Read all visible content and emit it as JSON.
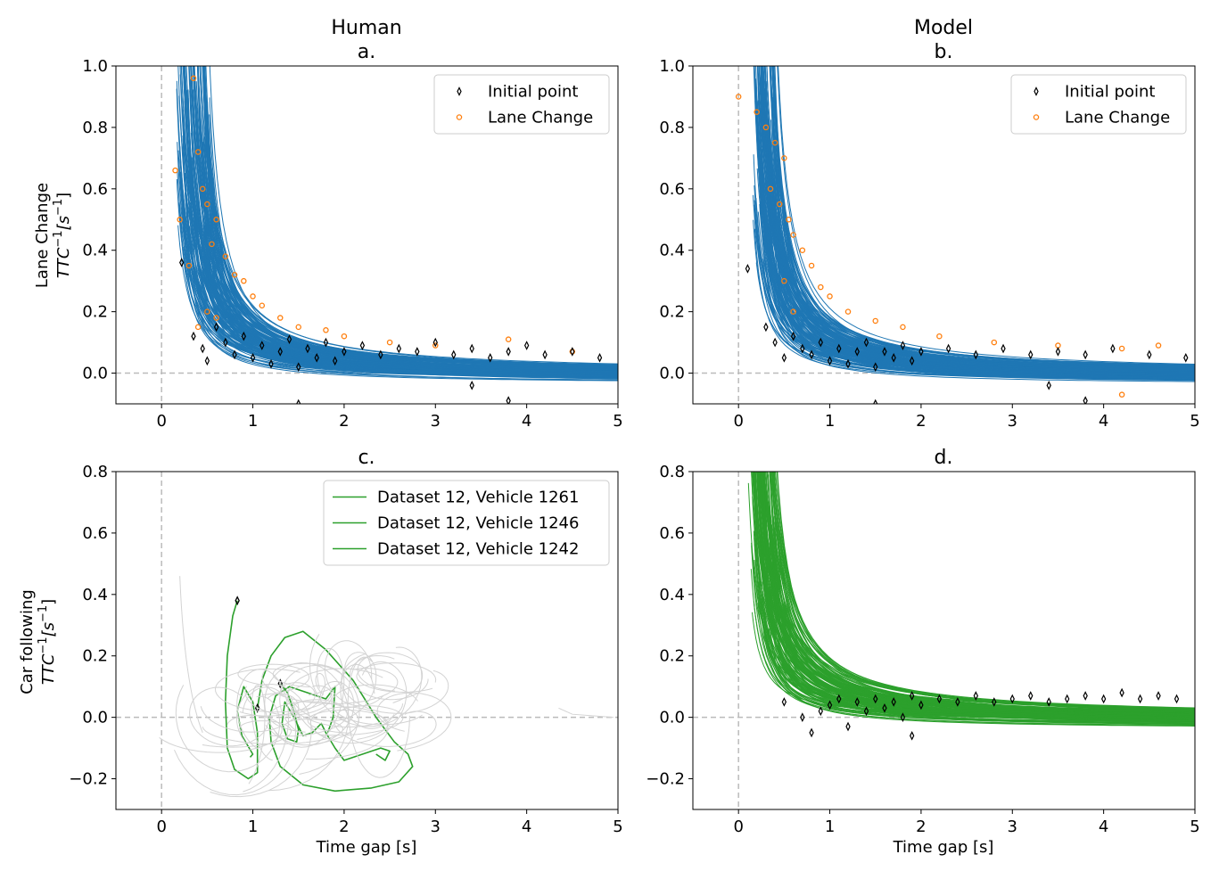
{
  "figure": {
    "column_titles": [
      "Human",
      "Model"
    ],
    "row_labels": [
      {
        "line1": "Lane Change",
        "line2_main": "TTC",
        "line2_sup": "−1",
        "line2_unit_open": "[s",
        "line2_unit_sup": "−1",
        "line2_unit_close": "]"
      },
      {
        "line1": "Car following",
        "line2_main": "TTC",
        "line2_sup": "−1",
        "line2_unit_open": "[s",
        "line2_unit_sup": "−1",
        "line2_unit_close": "]"
      }
    ],
    "xlabel": "Time gap [s]",
    "colors": {
      "lane_change_traj": "#1f77b4",
      "lane_change_marker": "#ff7f0e",
      "car_following": "#2ca02c",
      "background_traj": "#d3d3d3",
      "initial_marker": "#000000",
      "reference_line": "#bbbbbb"
    }
  },
  "chart_data": [
    {
      "id": "a",
      "title": "a.",
      "type": "line",
      "description_kind": "trajectories",
      "xlim": [
        -0.5,
        5
      ],
      "ylim": [
        -0.1,
        1.0
      ],
      "xticks": [
        0,
        1,
        2,
        3,
        4,
        5
      ],
      "yticks": [
        0.0,
        0.2,
        0.4,
        0.6,
        0.8,
        1.0
      ],
      "ytick_labels": [
        "0.0",
        "0.2",
        "0.4",
        "0.6",
        "0.8",
        "1.0"
      ],
      "legend": {
        "placement": "top-right",
        "entries": [
          "Initial point",
          "Lane Change"
        ]
      },
      "series": [
        {
          "name": "Initial point",
          "marker": "thin_diamond",
          "points": [
            [
              0.22,
              0.36
            ],
            [
              0.35,
              0.12
            ],
            [
              0.45,
              0.08
            ],
            [
              0.5,
              0.04
            ],
            [
              0.6,
              0.15
            ],
            [
              0.7,
              0.1
            ],
            [
              0.8,
              0.06
            ],
            [
              0.9,
              0.12
            ],
            [
              1.0,
              0.05
            ],
            [
              1.1,
              0.09
            ],
            [
              1.2,
              0.03
            ],
            [
              1.3,
              0.07
            ],
            [
              1.4,
              0.11
            ],
            [
              1.5,
              0.02
            ],
            [
              1.6,
              0.08
            ],
            [
              1.7,
              0.05
            ],
            [
              1.8,
              0.1
            ],
            [
              1.9,
              0.04
            ],
            [
              2.0,
              0.07
            ],
            [
              2.2,
              0.09
            ],
            [
              2.4,
              0.06
            ],
            [
              2.6,
              0.08
            ],
            [
              2.8,
              0.07
            ],
            [
              3.0,
              0.1
            ],
            [
              3.2,
              0.06
            ],
            [
              3.4,
              0.08
            ],
            [
              3.6,
              0.05
            ],
            [
              3.8,
              0.07
            ],
            [
              4.0,
              0.09
            ],
            [
              4.2,
              0.06
            ],
            [
              4.5,
              0.07
            ],
            [
              4.8,
              0.05
            ],
            [
              1.5,
              -0.1
            ],
            [
              3.8,
              -0.09
            ],
            [
              3.4,
              -0.04
            ]
          ]
        },
        {
          "name": "Lane Change",
          "marker": "circle",
          "points": [
            [
              0.35,
              0.96
            ],
            [
              0.4,
              0.72
            ],
            [
              0.15,
              0.66
            ],
            [
              0.45,
              0.6
            ],
            [
              0.5,
              0.55
            ],
            [
              0.6,
              0.5
            ],
            [
              0.2,
              0.5
            ],
            [
              0.55,
              0.42
            ],
            [
              0.7,
              0.38
            ],
            [
              0.8,
              0.32
            ],
            [
              0.9,
              0.3
            ],
            [
              1.0,
              0.25
            ],
            [
              1.1,
              0.22
            ],
            [
              0.5,
              0.2
            ],
            [
              0.6,
              0.18
            ],
            [
              1.3,
              0.18
            ],
            [
              1.5,
              0.15
            ],
            [
              1.8,
              0.14
            ],
            [
              2.0,
              0.12
            ],
            [
              2.5,
              0.1
            ],
            [
              3.0,
              0.09
            ],
            [
              3.8,
              0.11
            ],
            [
              4.5,
              0.07
            ],
            [
              0.4,
              0.15
            ],
            [
              0.3,
              0.35
            ]
          ]
        },
        {
          "name": "Trajectories",
          "kind": "decay_curves",
          "count": 150
        }
      ]
    },
    {
      "id": "b",
      "title": "b.",
      "type": "line",
      "description_kind": "trajectories",
      "xlim": [
        -0.5,
        5
      ],
      "ylim": [
        -0.1,
        1.0
      ],
      "xticks": [
        0,
        1,
        2,
        3,
        4,
        5
      ],
      "yticks": [
        0.0,
        0.2,
        0.4,
        0.6,
        0.8,
        1.0
      ],
      "ytick_labels": [
        "0.0",
        "0.2",
        "0.4",
        "0.6",
        "0.8",
        "1.0"
      ],
      "legend": {
        "placement": "top-right",
        "entries": [
          "Initial point",
          "Lane Change"
        ]
      },
      "series": [
        {
          "name": "Initial point",
          "marker": "thin_diamond",
          "points": [
            [
              0.1,
              0.34
            ],
            [
              0.3,
              0.15
            ],
            [
              0.4,
              0.1
            ],
            [
              0.5,
              0.05
            ],
            [
              0.6,
              0.12
            ],
            [
              0.7,
              0.08
            ],
            [
              0.8,
              0.06
            ],
            [
              0.9,
              0.1
            ],
            [
              1.0,
              0.04
            ],
            [
              1.1,
              0.08
            ],
            [
              1.2,
              0.03
            ],
            [
              1.3,
              0.07
            ],
            [
              1.4,
              0.1
            ],
            [
              1.5,
              0.02
            ],
            [
              1.6,
              0.07
            ],
            [
              1.7,
              0.05
            ],
            [
              1.8,
              0.09
            ],
            [
              1.9,
              0.04
            ],
            [
              2.0,
              0.07
            ],
            [
              2.3,
              0.08
            ],
            [
              2.6,
              0.06
            ],
            [
              2.9,
              0.08
            ],
            [
              3.2,
              0.06
            ],
            [
              3.5,
              0.07
            ],
            [
              3.8,
              0.06
            ],
            [
              4.1,
              0.08
            ],
            [
              4.5,
              0.06
            ],
            [
              4.9,
              0.05
            ],
            [
              1.5,
              -0.1
            ],
            [
              3.8,
              -0.09
            ],
            [
              3.4,
              -0.04
            ]
          ]
        },
        {
          "name": "Lane Change",
          "marker": "circle",
          "points": [
            [
              0.0,
              0.9
            ],
            [
              0.2,
              0.85
            ],
            [
              0.3,
              0.8
            ],
            [
              0.4,
              0.75
            ],
            [
              0.5,
              0.7
            ],
            [
              0.35,
              0.6
            ],
            [
              0.45,
              0.55
            ],
            [
              0.55,
              0.5
            ],
            [
              0.6,
              0.45
            ],
            [
              0.7,
              0.4
            ],
            [
              0.8,
              0.35
            ],
            [
              0.5,
              0.3
            ],
            [
              0.9,
              0.28
            ],
            [
              1.0,
              0.25
            ],
            [
              0.6,
              0.2
            ],
            [
              1.2,
              0.2
            ],
            [
              1.5,
              0.17
            ],
            [
              1.8,
              0.15
            ],
            [
              2.2,
              0.12
            ],
            [
              2.8,
              0.1
            ],
            [
              3.5,
              0.09
            ],
            [
              4.2,
              0.08
            ],
            [
              4.6,
              0.09
            ],
            [
              4.2,
              -0.07
            ]
          ]
        },
        {
          "name": "Trajectories",
          "kind": "decay_curves",
          "count": 150
        }
      ]
    },
    {
      "id": "c",
      "title": "c.",
      "type": "line",
      "description_kind": "trajectories",
      "xlim": [
        -0.5,
        5
      ],
      "ylim": [
        -0.3,
        0.8
      ],
      "xticks": [
        0,
        1,
        2,
        3,
        4,
        5
      ],
      "yticks": [
        -0.2,
        0.0,
        0.2,
        0.4,
        0.6,
        0.8
      ],
      "ytick_labels": [
        "−0.2",
        "0.0",
        "0.2",
        "0.4",
        "0.6",
        "0.8"
      ],
      "legend": {
        "placement": "top-right",
        "entries": [
          "Dataset 12, Vehicle 1261",
          "Dataset 12, Vehicle 1246",
          "Dataset 12, Vehicle 1242"
        ]
      },
      "series": [
        {
          "name": "Dataset 12, Vehicle 1261",
          "points": [
            [
              0.83,
              0.38
            ],
            [
              0.78,
              0.33
            ],
            [
              0.72,
              0.2
            ],
            [
              0.7,
              0.05
            ],
            [
              0.72,
              -0.1
            ],
            [
              0.8,
              -0.17
            ],
            [
              0.95,
              -0.2
            ],
            [
              1.05,
              -0.18
            ],
            [
              1.05,
              -0.05
            ],
            [
              1.0,
              0.05
            ],
            [
              0.9,
              0.1
            ],
            [
              0.83,
              0.02
            ],
            [
              0.88,
              -0.06
            ],
            [
              1.0,
              -0.12
            ],
            [
              0.97,
              -0.13
            ]
          ]
        },
        {
          "name": "Dataset 12, Vehicle 1246",
          "points": [
            [
              1.05,
              0.03
            ],
            [
              1.1,
              0.12
            ],
            [
              1.2,
              0.2
            ],
            [
              1.35,
              0.26
            ],
            [
              1.55,
              0.28
            ],
            [
              1.8,
              0.22
            ],
            [
              2.1,
              0.12
            ],
            [
              2.35,
              0.0
            ],
            [
              2.55,
              -0.08
            ],
            [
              2.7,
              -0.12
            ],
            [
              2.75,
              -0.16
            ],
            [
              2.6,
              -0.21
            ],
            [
              2.3,
              -0.23
            ],
            [
              1.9,
              -0.24
            ],
            [
              1.55,
              -0.22
            ],
            [
              1.3,
              -0.16
            ],
            [
              1.2,
              -0.08
            ],
            [
              1.18,
              0.0
            ],
            [
              1.25,
              0.07
            ],
            [
              1.4,
              0.1
            ],
            [
              1.6,
              0.08
            ],
            [
              1.8,
              0.06
            ],
            [
              1.9,
              0.1
            ],
            [
              1.88,
              0.0
            ],
            [
              1.82,
              -0.05
            ]
          ]
        },
        {
          "name": "Dataset 12, Vehicle 1242",
          "points": [
            [
              1.3,
              0.11
            ],
            [
              1.38,
              0.08
            ],
            [
              1.45,
              0.02
            ],
            [
              1.5,
              -0.04
            ],
            [
              1.48,
              -0.08
            ],
            [
              1.38,
              -0.07
            ],
            [
              1.32,
              -0.02
            ],
            [
              1.35,
              0.05
            ],
            [
              1.45,
              0.0
            ],
            [
              1.55,
              -0.06
            ],
            [
              1.65,
              -0.05
            ],
            [
              1.75,
              -0.02
            ],
            [
              1.8,
              -0.05
            ],
            [
              1.9,
              -0.1
            ],
            [
              2.0,
              -0.14
            ],
            [
              2.2,
              -0.12
            ],
            [
              2.4,
              -0.1
            ],
            [
              2.5,
              -0.11
            ],
            [
              2.45,
              -0.14
            ],
            [
              2.35,
              -0.12
            ]
          ]
        },
        {
          "name": "Background trajectories",
          "kind": "gray_curves",
          "count": 40
        }
      ]
    },
    {
      "id": "d",
      "title": "d.",
      "type": "line",
      "description_kind": "trajectories",
      "xlim": [
        -0.5,
        5
      ],
      "ylim": [
        -0.3,
        0.8
      ],
      "xticks": [
        0,
        1,
        2,
        3,
        4,
        5
      ],
      "yticks": [
        -0.2,
        0.0,
        0.2,
        0.4,
        0.6,
        0.8
      ],
      "ytick_labels": [
        "−0.2",
        "0.0",
        "0.2",
        "0.4",
        "0.6",
        "0.8"
      ],
      "legend": null,
      "series": [
        {
          "name": "Initial point",
          "marker": "thin_diamond",
          "points": [
            [
              0.5,
              0.05
            ],
            [
              0.7,
              0.0
            ],
            [
              0.8,
              -0.05
            ],
            [
              0.9,
              0.02
            ],
            [
              1.0,
              0.04
            ],
            [
              1.1,
              0.06
            ],
            [
              1.2,
              -0.03
            ],
            [
              1.3,
              0.05
            ],
            [
              1.4,
              0.02
            ],
            [
              1.5,
              0.06
            ],
            [
              1.6,
              0.03
            ],
            [
              1.7,
              0.05
            ],
            [
              1.8,
              0.0
            ],
            [
              1.9,
              0.07
            ],
            [
              2.0,
              0.04
            ],
            [
              2.2,
              0.06
            ],
            [
              2.4,
              0.05
            ],
            [
              2.6,
              0.07
            ],
            [
              2.8,
              0.05
            ],
            [
              3.0,
              0.06
            ],
            [
              3.2,
              0.07
            ],
            [
              3.4,
              0.05
            ],
            [
              3.6,
              0.06
            ],
            [
              3.8,
              0.07
            ],
            [
              4.0,
              0.06
            ],
            [
              4.2,
              0.08
            ],
            [
              4.4,
              0.06
            ],
            [
              4.6,
              0.07
            ],
            [
              4.8,
              0.06
            ],
            [
              1.9,
              -0.06
            ]
          ]
        },
        {
          "name": "Trajectories",
          "kind": "decay_curves",
          "count": 140
        }
      ]
    }
  ]
}
